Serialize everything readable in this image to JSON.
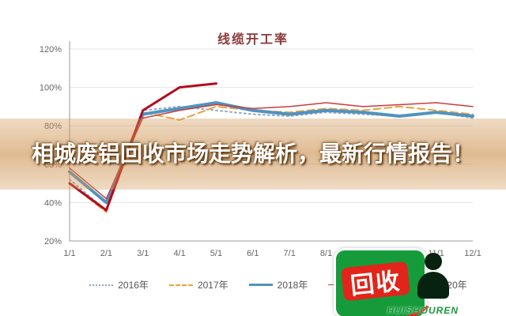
{
  "overlay": {
    "headline": "相城废铝回收市场走势解析，最新行情报告！"
  },
  "logo": {
    "mark_text": "回收",
    "brand": "HUISHOUREN",
    "green": "#169b3b",
    "red": "#e1251b"
  },
  "chart_data": {
    "type": "line",
    "title": "线缆开工率",
    "categories": [
      "1/1",
      "2/1",
      "3/1",
      "4/1",
      "5/1",
      "6/1",
      "7/1",
      "8/1",
      "9/1",
      "10/1",
      "11/1",
      "12/1"
    ],
    "xlabel": "",
    "ylabel": "",
    "ylim": [
      20,
      120
    ],
    "ytick_step": 20,
    "ytick_suffix": "%",
    "grid": true,
    "legend_position": "bottom",
    "series": [
      {
        "name": "2016年",
        "color": "#8fa8c8",
        "style": "dotted",
        "width": 2,
        "values": [
          52,
          36,
          88,
          90,
          88,
          86,
          85,
          87,
          86,
          85,
          87,
          84
        ]
      },
      {
        "name": "2017年",
        "color": "#e8a33d",
        "style": "dashed",
        "width": 2,
        "values": [
          50,
          35,
          87,
          83,
          90,
          88,
          87,
          89,
          88,
          90,
          88,
          86
        ]
      },
      {
        "name": "2018年",
        "color": "#4f93c0",
        "style": "solid",
        "width": 4,
        "values": [
          56,
          40,
          86,
          89,
          92,
          88,
          86,
          88,
          87,
          85,
          87,
          85
        ]
      },
      {
        "name": "2019年",
        "color": "#cc3b3b",
        "style": "solid",
        "width": 1.5,
        "values": [
          58,
          42,
          84,
          88,
          91,
          89,
          90,
          92,
          90,
          91,
          92,
          90
        ]
      },
      {
        "name": "2020年",
        "color": "#b40a1e",
        "style": "solid",
        "width": 3,
        "values": [
          50,
          36,
          88,
          100,
          102
        ]
      }
    ]
  }
}
